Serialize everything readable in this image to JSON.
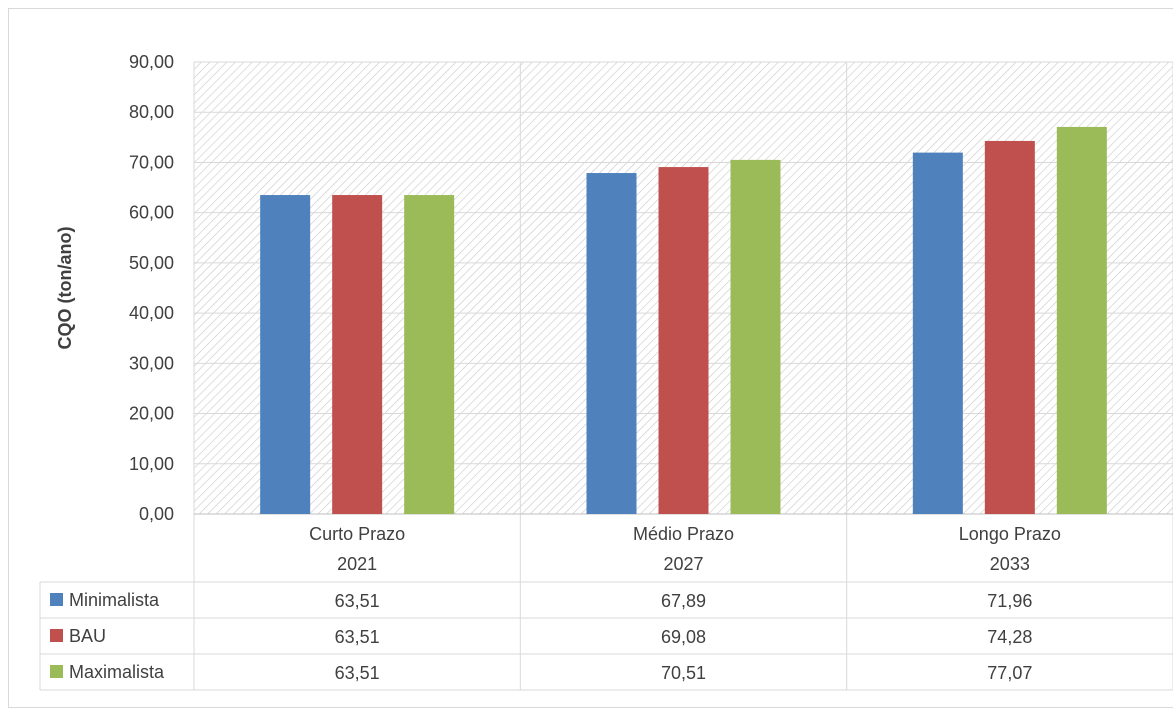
{
  "chart_data": {
    "type": "bar",
    "categories": [
      {
        "line1": "Curto Prazo",
        "line2": "2021"
      },
      {
        "line1": "Médio Prazo",
        "line2": "2027"
      },
      {
        "line1": "Longo Prazo",
        "line2": "2033"
      }
    ],
    "series": [
      {
        "name": "Minimalista",
        "color": "#4f81bd",
        "values": [
          63.51,
          67.89,
          71.96
        ],
        "labels": [
          "63,51",
          "67,89",
          "71,96"
        ]
      },
      {
        "name": "BAU",
        "color": "#c0504d",
        "values": [
          63.51,
          69.08,
          74.28
        ],
        "labels": [
          "63,51",
          "69,08",
          "74,28"
        ]
      },
      {
        "name": "Maximalista",
        "color": "#9bbb59",
        "values": [
          63.51,
          70.51,
          77.07
        ],
        "labels": [
          "63,51",
          "70,51",
          "77,07"
        ]
      }
    ],
    "ylabel": "CQO (ton/ano)",
    "ylim": [
      0,
      90
    ],
    "yticks": [
      "0,00",
      "10,00",
      "20,00",
      "30,00",
      "40,00",
      "50,00",
      "60,00",
      "70,00",
      "80,00",
      "90,00"
    ],
    "grid": true,
    "plot_background": "hatched",
    "legend": "data-table"
  }
}
